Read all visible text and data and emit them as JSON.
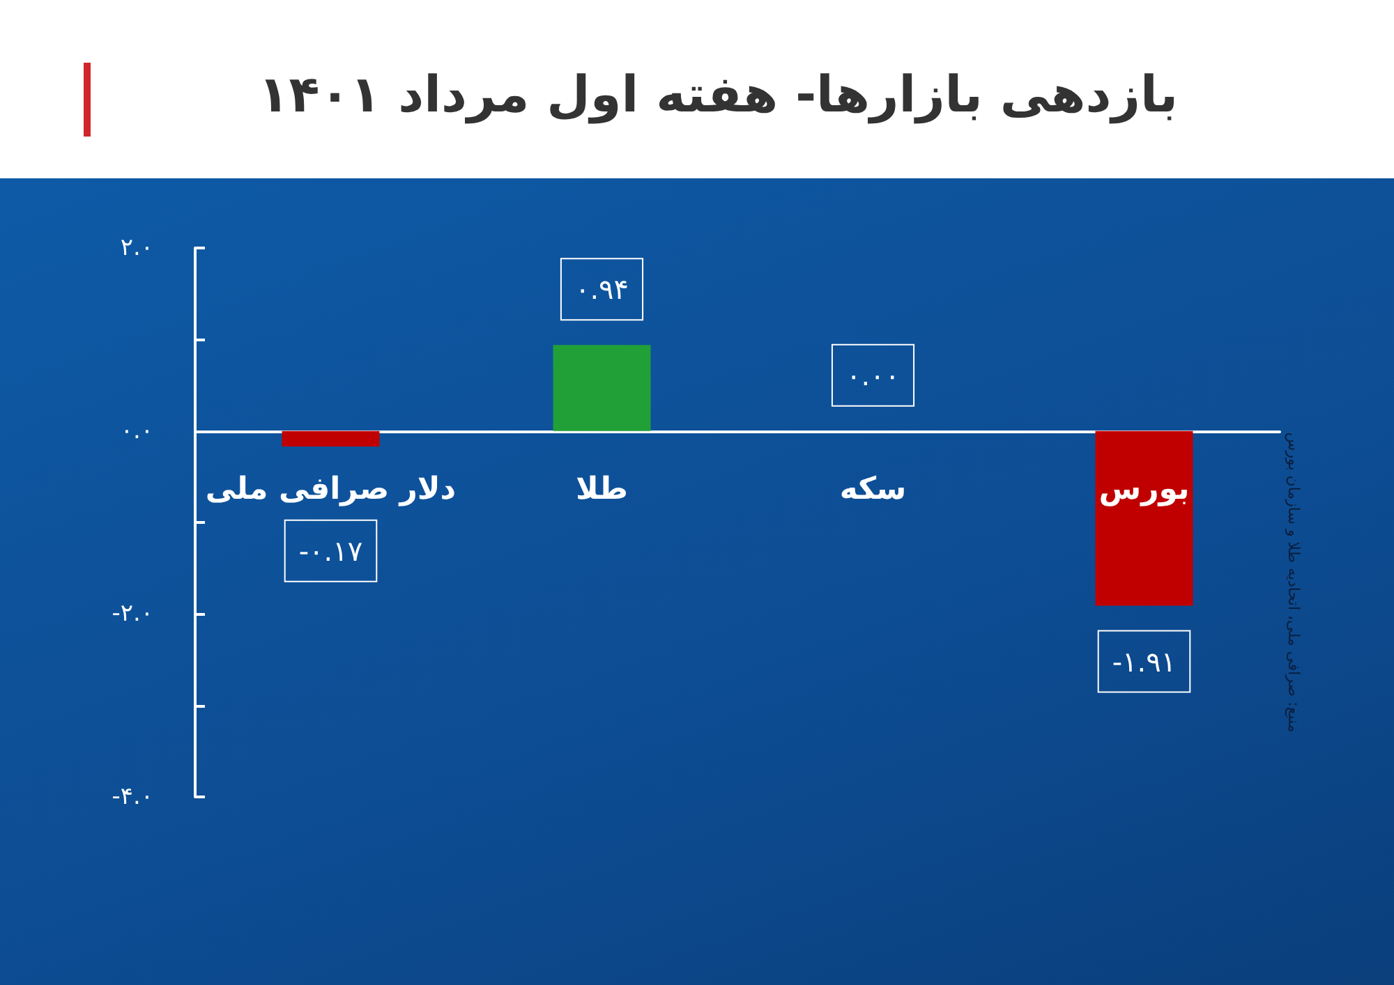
{
  "chart_data": {
    "type": "bar",
    "title": "بازدهی بازارها- هفته اول مرداد ۱۴۰۱",
    "categories": [
      "دلار صرافی ملی",
      "طلا",
      "سکه",
      "بورس"
    ],
    "values": [
      -0.17,
      0.94,
      0.0,
      -1.91
    ],
    "colors": [
      "#c00000",
      "#21a038",
      "#21a038",
      "#c00000"
    ],
    "value_labels": [
      "-۰.۱۷",
      "۰.۹۴",
      "۰.۰۰",
      "-۱.۹۱"
    ],
    "ylim": [
      -4,
      2
    ],
    "yticks": [
      {
        "value": -4,
        "label": "-۴.۰"
      },
      {
        "value": -3,
        "label": null
      },
      {
        "value": -2,
        "label": "-۲.۰"
      },
      {
        "value": -1,
        "label": null
      },
      {
        "value": 0,
        "label": "۰.۰"
      },
      {
        "value": 1,
        "label": null
      },
      {
        "value": 2,
        "label": "۲.۰"
      }
    ],
    "grid": false,
    "annotations": [
      "منبع: صرافی ملی، اتحادیه طلا و سازمان بورس"
    ]
  }
}
